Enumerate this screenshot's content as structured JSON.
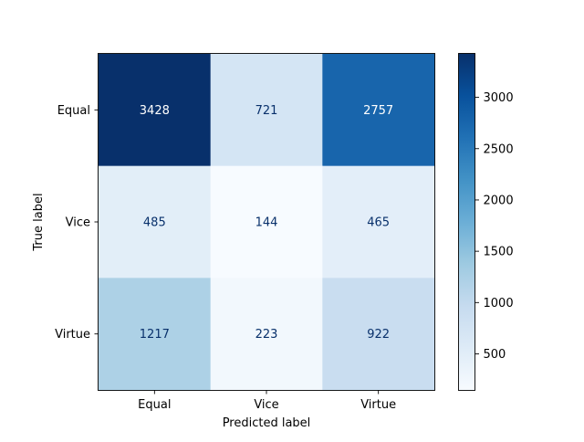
{
  "chart_data": {
    "type": "heatmap",
    "title": "",
    "xlabel": "Predicted label",
    "ylabel": "True label",
    "x_categories": [
      "Equal",
      "Vice",
      "Virtue"
    ],
    "y_categories": [
      "Equal",
      "Vice",
      "Virtue"
    ],
    "matrix": [
      [
        3428,
        721,
        2757
      ],
      [
        485,
        144,
        465
      ],
      [
        1217,
        223,
        922
      ]
    ],
    "colormap": "Blues",
    "color_range": [
      144,
      3428
    ],
    "colorbar": {
      "ticks": [
        500,
        1000,
        1500,
        2000,
        2500,
        3000
      ],
      "tick_labels": [
        "500",
        "1000",
        "1500",
        "2000",
        "2500",
        "3000"
      ]
    },
    "light_text_color": "#ffffff",
    "dark_text_color": "#08306b",
    "grid": false
  }
}
